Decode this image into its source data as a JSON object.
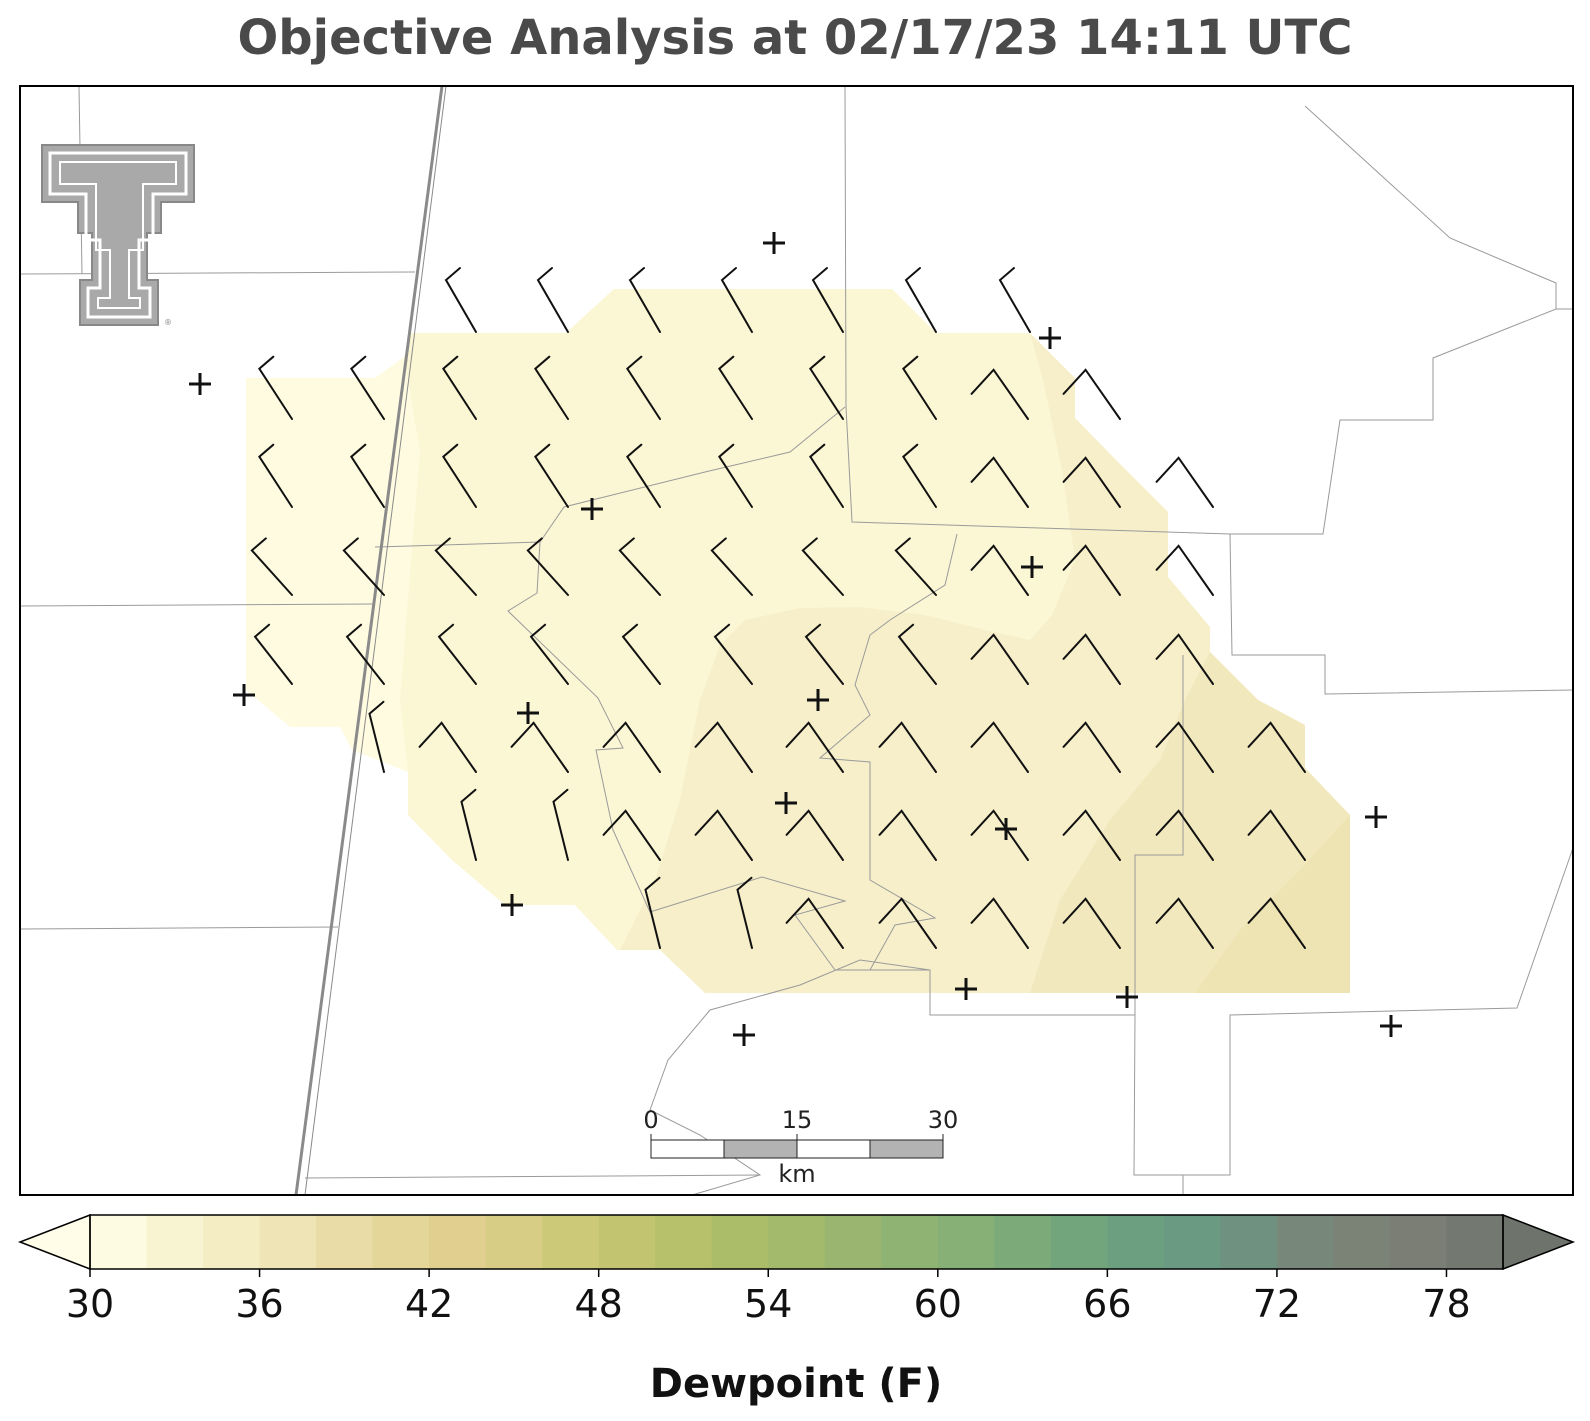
{
  "title": "Objective Analysis at 02/17/23 14:11 UTC",
  "scale_bar": {
    "ticks": [
      "0",
      "15",
      "30"
    ],
    "unit": "km"
  },
  "colorbar": {
    "label": "Dewpoint (F)",
    "min": 30,
    "max": 80,
    "ticks": [
      30,
      36,
      42,
      48,
      54,
      60,
      66,
      72,
      78
    ],
    "extend": "both",
    "colors": [
      "#fdfbe1",
      "#f8f4d2",
      "#f4edc4",
      "#eee4b5",
      "#e9dca7",
      "#e4d599",
      "#e0cf8f",
      "#d8cd84",
      "#ccc979",
      "#c2c470",
      "#b7c06b",
      "#acbd6a",
      "#a3b96c",
      "#99b56f",
      "#8fb373",
      "#86b076",
      "#7caa79",
      "#73a57c",
      "#6b9f7f",
      "#6a9a82",
      "#6f917f",
      "#77887b",
      "#7b8377",
      "#7a7e74",
      "#737870"
    ],
    "under_color": "#fffce8",
    "over_color": "#6e736b"
  },
  "logo": "texas-tech-double-t-logo",
  "icons": {
    "station": "station-plus-icon",
    "barb": "wind-barb-icon"
  }
}
